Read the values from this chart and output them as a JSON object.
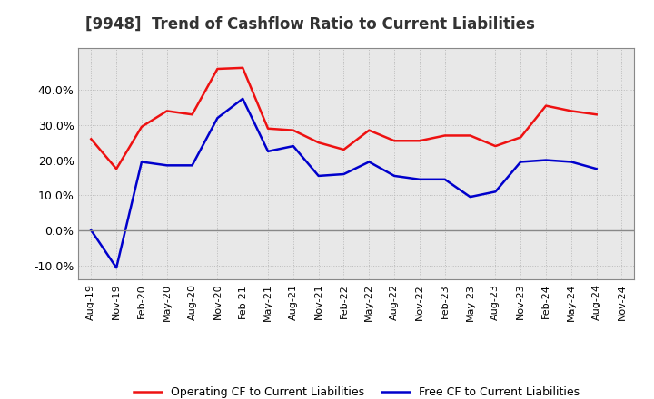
{
  "title": "[9948]  Trend of Cashflow Ratio to Current Liabilities",
  "x_labels": [
    "Aug-19",
    "Nov-19",
    "Feb-20",
    "May-20",
    "Aug-20",
    "Nov-20",
    "Feb-21",
    "May-21",
    "Aug-21",
    "Nov-21",
    "Feb-22",
    "May-22",
    "Aug-22",
    "Nov-22",
    "Feb-23",
    "May-23",
    "Aug-23",
    "Nov-23",
    "Feb-24",
    "May-24",
    "Aug-24",
    "Nov-24"
  ],
  "operating_cf": [
    0.26,
    0.175,
    0.295,
    0.34,
    0.33,
    0.46,
    0.463,
    0.29,
    0.285,
    0.25,
    0.23,
    0.285,
    0.255,
    0.255,
    0.27,
    0.27,
    0.24,
    0.265,
    0.355,
    0.34,
    0.33,
    null
  ],
  "free_cf": [
    0.0,
    -0.107,
    0.195,
    0.185,
    0.185,
    0.32,
    0.375,
    0.225,
    0.24,
    0.155,
    0.16,
    0.195,
    0.155,
    0.145,
    0.145,
    0.095,
    0.11,
    0.195,
    0.2,
    0.195,
    0.175,
    null
  ],
  "ylim": [
    -0.14,
    0.52
  ],
  "yticks": [
    -0.1,
    0.0,
    0.1,
    0.2,
    0.3,
    0.4
  ],
  "operating_color": "#ee1111",
  "free_color": "#0000cc",
  "background_color": "#ffffff",
  "plot_bg_color": "#e8e8e8",
  "grid_color": "#bbbbbb",
  "zero_line_color": "#888888",
  "title_fontsize": 12,
  "tick_fontsize": 8,
  "legend_fontsize": 9
}
